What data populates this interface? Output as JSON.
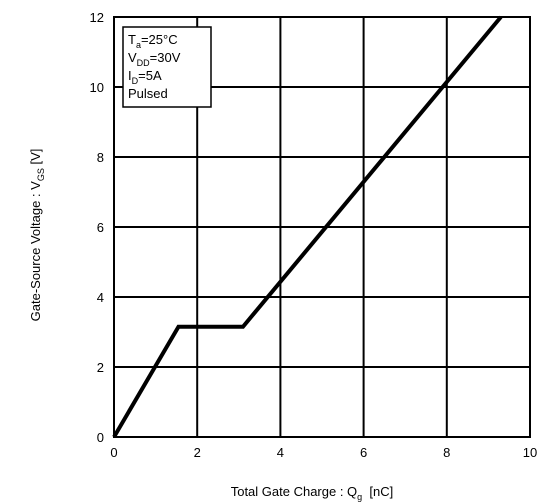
{
  "chart_data": {
    "type": "line",
    "xlabel": {
      "text": "Total Gate Charge : Q",
      "sub": "g",
      "unit": "  [nC]"
    },
    "ylabel": {
      "text": "Gate-Source Voltage : V",
      "sub": "GS",
      "unit": " [V]"
    },
    "xlim": [
      0,
      10
    ],
    "ylim": [
      0,
      12
    ],
    "xticks": [
      0,
      2,
      4,
      6,
      8,
      10
    ],
    "yticks": [
      0,
      2,
      4,
      6,
      8,
      10,
      12
    ],
    "grid": true,
    "series": [
      {
        "x": [
          0,
          1.55,
          3.1,
          9.3
        ],
        "y": [
          0,
          3.15,
          3.15,
          12.0
        ]
      }
    ],
    "conditions": [
      {
        "main": "T",
        "sub": "a",
        "rest": "=25°C"
      },
      {
        "main": "V",
        "sub": "DD",
        "rest": "=30V"
      },
      {
        "main": "I",
        "sub": "D",
        "rest": "=5A"
      },
      {
        "main": "Pulsed",
        "sub": "",
        "rest": ""
      }
    ],
    "colors": {
      "line": "#000000",
      "grid": "#000000"
    }
  }
}
